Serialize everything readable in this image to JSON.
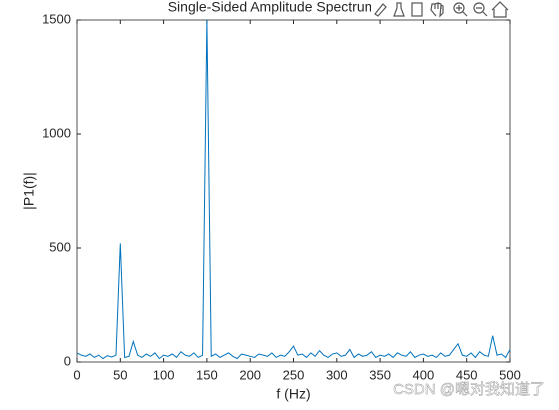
{
  "chart_data": {
    "type": "line",
    "title": "Single-Sided Amplitude Spectrum",
    "xlabel": "f (Hz)",
    "ylabel": "|P1(f)|",
    "x": [
      0,
      5,
      10,
      15,
      20,
      25,
      30,
      35,
      40,
      45,
      50,
      55,
      60,
      65,
      70,
      75,
      80,
      85,
      90,
      95,
      100,
      105,
      110,
      115,
      120,
      125,
      130,
      135,
      140,
      145,
      150,
      155,
      160,
      165,
      170,
      175,
      180,
      185,
      190,
      195,
      200,
      205,
      210,
      215,
      220,
      225,
      230,
      235,
      240,
      245,
      250,
      255,
      260,
      265,
      270,
      275,
      280,
      285,
      290,
      295,
      300,
      305,
      310,
      315,
      320,
      325,
      330,
      335,
      340,
      345,
      350,
      355,
      360,
      365,
      370,
      375,
      380,
      385,
      390,
      395,
      400,
      405,
      410,
      415,
      420,
      425,
      430,
      435,
      440,
      445,
      450,
      455,
      460,
      465,
      470,
      475,
      480,
      485,
      490,
      495,
      500
    ],
    "series": [
      {
        "name": "P1",
        "color": "#0072bd",
        "values": [
          40,
          30,
          25,
          35,
          20,
          30,
          15,
          28,
          22,
          30,
          520,
          20,
          25,
          90,
          30,
          20,
          35,
          25,
          40,
          15,
          30,
          25,
          35,
          20,
          45,
          30,
          25,
          40,
          20,
          30,
          1500,
          25,
          35,
          20,
          30,
          40,
          25,
          15,
          35,
          30,
          25,
          20,
          35,
          30,
          25,
          40,
          20,
          30,
          25,
          45,
          70,
          30,
          35,
          20,
          40,
          25,
          50,
          30,
          20,
          35,
          40,
          25,
          30,
          55,
          20,
          35,
          25,
          30,
          45,
          20,
          30,
          25,
          35,
          20,
          40,
          30,
          25,
          45,
          20,
          30,
          35,
          25,
          30,
          20,
          40,
          25,
          30,
          55,
          80,
          30,
          25,
          40,
          20,
          45,
          30,
          25,
          115,
          30,
          35,
          20,
          55
        ]
      }
    ],
    "xlim": [
      0,
      500
    ],
    "ylim": [
      0,
      1500
    ],
    "xticks": [
      0,
      50,
      100,
      150,
      200,
      250,
      300,
      350,
      400,
      450,
      500
    ],
    "yticks": [
      0,
      500,
      1000,
      1500
    ],
    "watermark": "CSDN @嗯对我知道了"
  }
}
